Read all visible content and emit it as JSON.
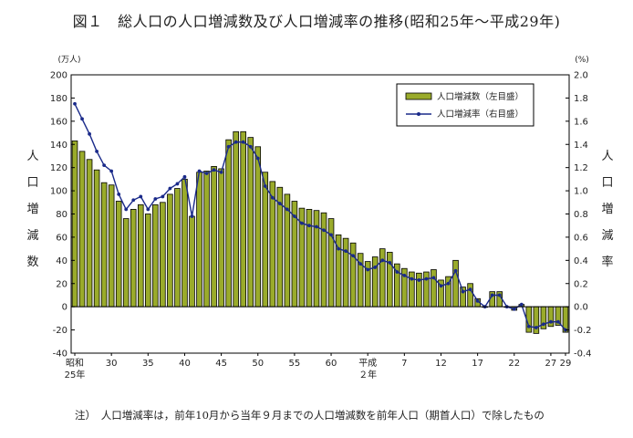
{
  "title": "図１　総人口の人口増減数及び人口増減率の推移(昭和25年～平成29年)",
  "note": "注）　人口増減率は，前年10月から当年９月までの人口増減数を前年人口（期首人口）で除したもの",
  "colors": {
    "bar_fill": "#9aab2b",
    "bar_stroke": "#000000",
    "line": "#1a2a8a",
    "axis": "#000000"
  },
  "chart_data": {
    "type": "bar",
    "combo_line": true,
    "left_unit": "(万人)",
    "right_unit": "(%)",
    "left_axis_label": [
      "人",
      "口",
      "増",
      "減",
      "数"
    ],
    "right_axis_label": [
      "人",
      "口",
      "増",
      "減",
      "率"
    ],
    "left_ylim": [
      -40,
      200
    ],
    "left_ticks": [
      "200",
      "180",
      "160",
      "140",
      "120",
      "100",
      "80",
      "60",
      "40",
      "20",
      "0",
      "-20",
      "-40"
    ],
    "right_ylim": [
      -0.4,
      2.0
    ],
    "right_ticks": [
      "2.0",
      "1.8",
      "1.6",
      "1.4",
      "1.2",
      "1.0",
      "0.8",
      "0.6",
      "0.4",
      "0.2",
      "0.0",
      "-0.2",
      "-0.4"
    ],
    "x_labels": [
      {
        "text": "昭和",
        "line2": "25年",
        "index": 0
      },
      {
        "text": "30",
        "line2": "",
        "index": 5
      },
      {
        "text": "35",
        "line2": "",
        "index": 10
      },
      {
        "text": "40",
        "line2": "",
        "index": 15
      },
      {
        "text": "45",
        "line2": "",
        "index": 20
      },
      {
        "text": "50",
        "line2": "",
        "index": 25
      },
      {
        "text": "55",
        "line2": "",
        "index": 30
      },
      {
        "text": "60",
        "line2": "",
        "index": 35
      },
      {
        "text": "平成",
        "line2": "２年",
        "index": 40
      },
      {
        "text": "7",
        "line2": "",
        "index": 45
      },
      {
        "text": "12",
        "line2": "",
        "index": 50
      },
      {
        "text": "17",
        "line2": "",
        "index": 55
      },
      {
        "text": "22",
        "line2": "",
        "index": 60
      },
      {
        "text": "27",
        "line2": "",
        "index": 65
      },
      {
        "text": "29",
        "line2": "",
        "index": 67
      }
    ],
    "series": [
      {
        "name": "人口増減数（左目盛）",
        "type": "bar",
        "axis": "left",
        "values": [
          143,
          134,
          127,
          118,
          107,
          105,
          91,
          76,
          84,
          88,
          80,
          88,
          90,
          97,
          102,
          110,
          78,
          116,
          117,
          121,
          119,
          144,
          151,
          151,
          146,
          138,
          116,
          108,
          103,
          97,
          91,
          85,
          84,
          83,
          81,
          76,
          62,
          59,
          55,
          46,
          39,
          43,
          50,
          47,
          37,
          33,
          30,
          29,
          30,
          32,
          23,
          26,
          40,
          17,
          20,
          7,
          0,
          13,
          13,
          0,
          -3,
          2,
          -22,
          -23,
          -19,
          -17,
          -16,
          -22
        ]
      },
      {
        "name": "人口増減率（右目盛）",
        "type": "line",
        "axis": "right",
        "values": [
          1.75,
          1.62,
          1.49,
          1.34,
          1.22,
          1.17,
          0.97,
          0.84,
          0.92,
          0.95,
          0.84,
          0.93,
          0.95,
          1.02,
          1.06,
          1.12,
          0.78,
          1.17,
          1.15,
          1.18,
          1.16,
          1.38,
          1.42,
          1.42,
          1.38,
          1.28,
          1.04,
          0.94,
          0.89,
          0.84,
          0.78,
          0.72,
          0.7,
          0.69,
          0.66,
          0.62,
          0.5,
          0.48,
          0.44,
          0.37,
          0.32,
          0.34,
          0.4,
          0.38,
          0.3,
          0.27,
          0.24,
          0.23,
          0.24,
          0.25,
          0.18,
          0.2,
          0.31,
          0.13,
          0.15,
          0.05,
          0.0,
          0.1,
          0.1,
          0.0,
          -0.02,
          0.02,
          -0.17,
          -0.18,
          -0.15,
          -0.13,
          -0.13,
          -0.2
        ]
      }
    ],
    "legend": {
      "position": "top-right",
      "entries": [
        "人口増減数（左目盛）",
        "人口増減率（右目盛）"
      ]
    }
  }
}
